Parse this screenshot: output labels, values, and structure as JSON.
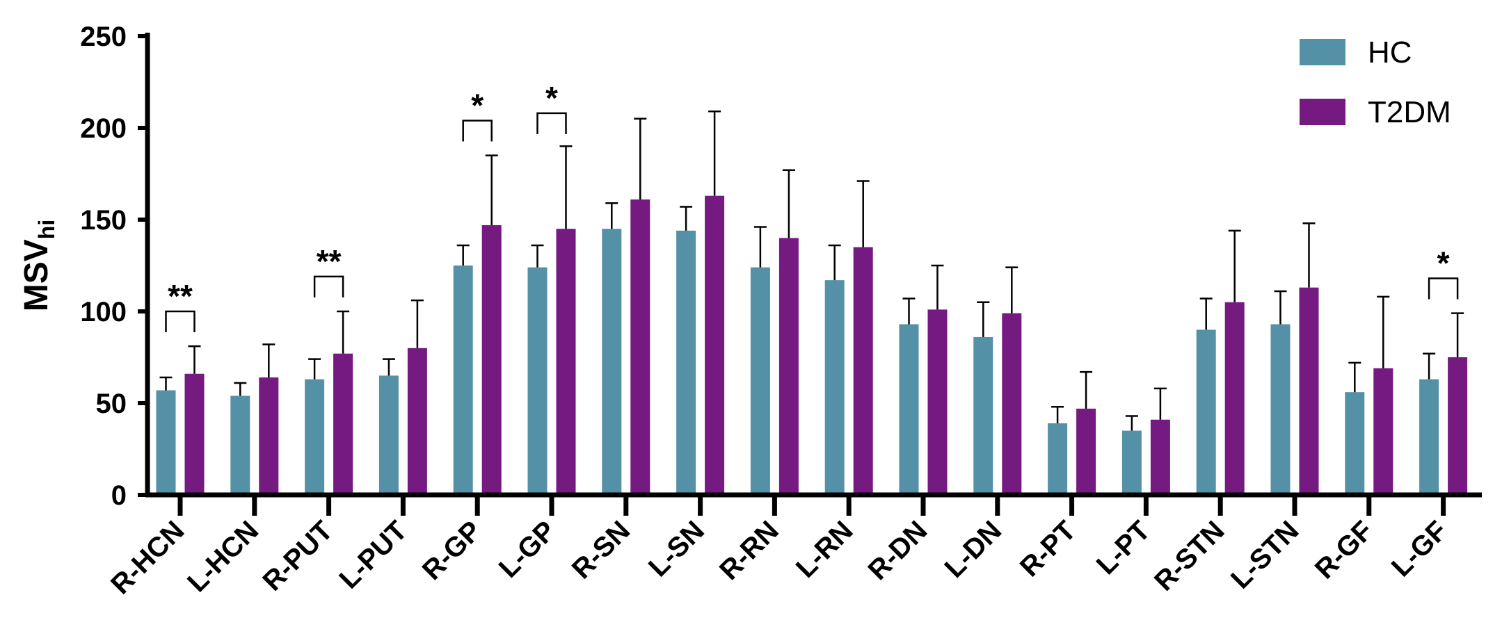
{
  "chart_data": {
    "type": "bar",
    "title": "",
    "xlabel": "",
    "ylabel": "MSV",
    "ylabel_sub": "hi",
    "ylim": [
      0,
      250
    ],
    "yticks": [
      "0",
      "50",
      "100",
      "150",
      "200",
      "250"
    ],
    "ytick_values": [
      0,
      50,
      100,
      150,
      200,
      250
    ],
    "grid": false,
    "legend_position": "top-right",
    "categories": [
      "R-HCN",
      "L-HCN",
      "R-PUT",
      "L-PUT",
      "R-GP",
      "L-GP",
      "R-SN",
      "L-SN",
      "R-RN",
      "L-RN",
      "R-DN",
      "L-DN",
      "R-PT",
      "L-PT",
      "R-STN",
      "L-STN",
      "R-GF",
      "L-GF"
    ],
    "series": [
      {
        "name": "HC",
        "color": "#5591a6",
        "values": [
          57,
          54,
          63,
          65,
          125,
          124,
          145,
          144,
          124,
          117,
          93,
          86,
          39,
          35,
          90,
          93,
          56,
          63
        ],
        "error": [
          7,
          7,
          11,
          9,
          11,
          12,
          14,
          13,
          22,
          19,
          14,
          19,
          9,
          8,
          17,
          18,
          16,
          14
        ]
      },
      {
        "name": "T2DM",
        "color": "#741a80",
        "values": [
          66,
          64,
          77,
          80,
          147,
          145,
          161,
          163,
          140,
          135,
          101,
          99,
          47,
          41,
          105,
          113,
          69,
          75
        ],
        "error": [
          15,
          18,
          23,
          26,
          38,
          45,
          44,
          46,
          37,
          36,
          24,
          25,
          20,
          17,
          39,
          35,
          39,
          24
        ]
      }
    ],
    "significance": [
      {
        "category": "R-HCN",
        "label": "**",
        "bracket_value": 100
      },
      {
        "category": "R-PUT",
        "label": "**",
        "bracket_value": 119
      },
      {
        "category": "R-GP",
        "label": "*",
        "bracket_value": 204
      },
      {
        "category": "L-GP",
        "label": "*",
        "bracket_value": 208
      },
      {
        "category": "L-GF",
        "label": "*",
        "bracket_value": 118
      }
    ]
  }
}
